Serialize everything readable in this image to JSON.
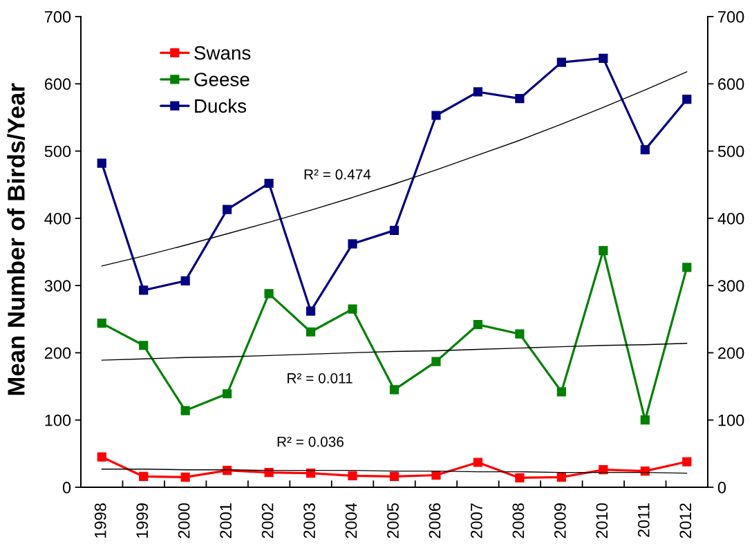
{
  "chart_data": {
    "type": "line",
    "categories": [
      "1998",
      "1999",
      "2000",
      "2001",
      "2002",
      "2003",
      "2004",
      "2005",
      "2006",
      "2007",
      "2008",
      "2009",
      "2010",
      "2011",
      "2012"
    ],
    "series": [
      {
        "name": "Swans",
        "color": "#ff0000",
        "values": [
          45,
          16,
          15,
          25,
          22,
          21,
          17,
          16,
          18,
          37,
          14,
          15,
          26,
          24,
          38
        ]
      },
      {
        "name": "Geese",
        "color": "#008000",
        "values": [
          244,
          211,
          114,
          139,
          288,
          231,
          265,
          145,
          187,
          242,
          228,
          142,
          352,
          100,
          327
        ]
      },
      {
        "name": "Ducks",
        "color": "#000080",
        "values": [
          482,
          293,
          307,
          413,
          452,
          262,
          362,
          382,
          553,
          588,
          578,
          632,
          638,
          502,
          577
        ]
      },
      {
        "color": "#000000",
        "marker": "none",
        "values": [
          329,
          344,
          360,
          377,
          394,
          412,
          431,
          451,
          472,
          494,
          516,
          540,
          565,
          591,
          618
        ]
      },
      {
        "color": "#000000",
        "marker": "none",
        "values": [
          189,
          191,
          193,
          194,
          196,
          198,
          200,
          202,
          203,
          205,
          207,
          209,
          211,
          212,
          214
        ]
      },
      {
        "color": "#000000",
        "marker": "none",
        "values": [
          27,
          27,
          26,
          26,
          25,
          25,
          25,
          24,
          24,
          23,
          23,
          22,
          22,
          22,
          21
        ]
      }
    ],
    "ylabel": "Mean Number of Birds/Year",
    "ylim": [
      0,
      700
    ],
    "yticks": [
      0,
      100,
      200,
      300,
      400,
      500,
      600,
      700
    ],
    "y2lim": [
      0,
      700
    ],
    "y2ticks": [
      0,
      100,
      200,
      300,
      400,
      500,
      600,
      700
    ],
    "annotations": [
      "R² = 0.474",
      "R² = 0.011",
      "R² = 0.036"
    ],
    "legend": "top left",
    "marker": "square",
    "line_style": "solid"
  }
}
